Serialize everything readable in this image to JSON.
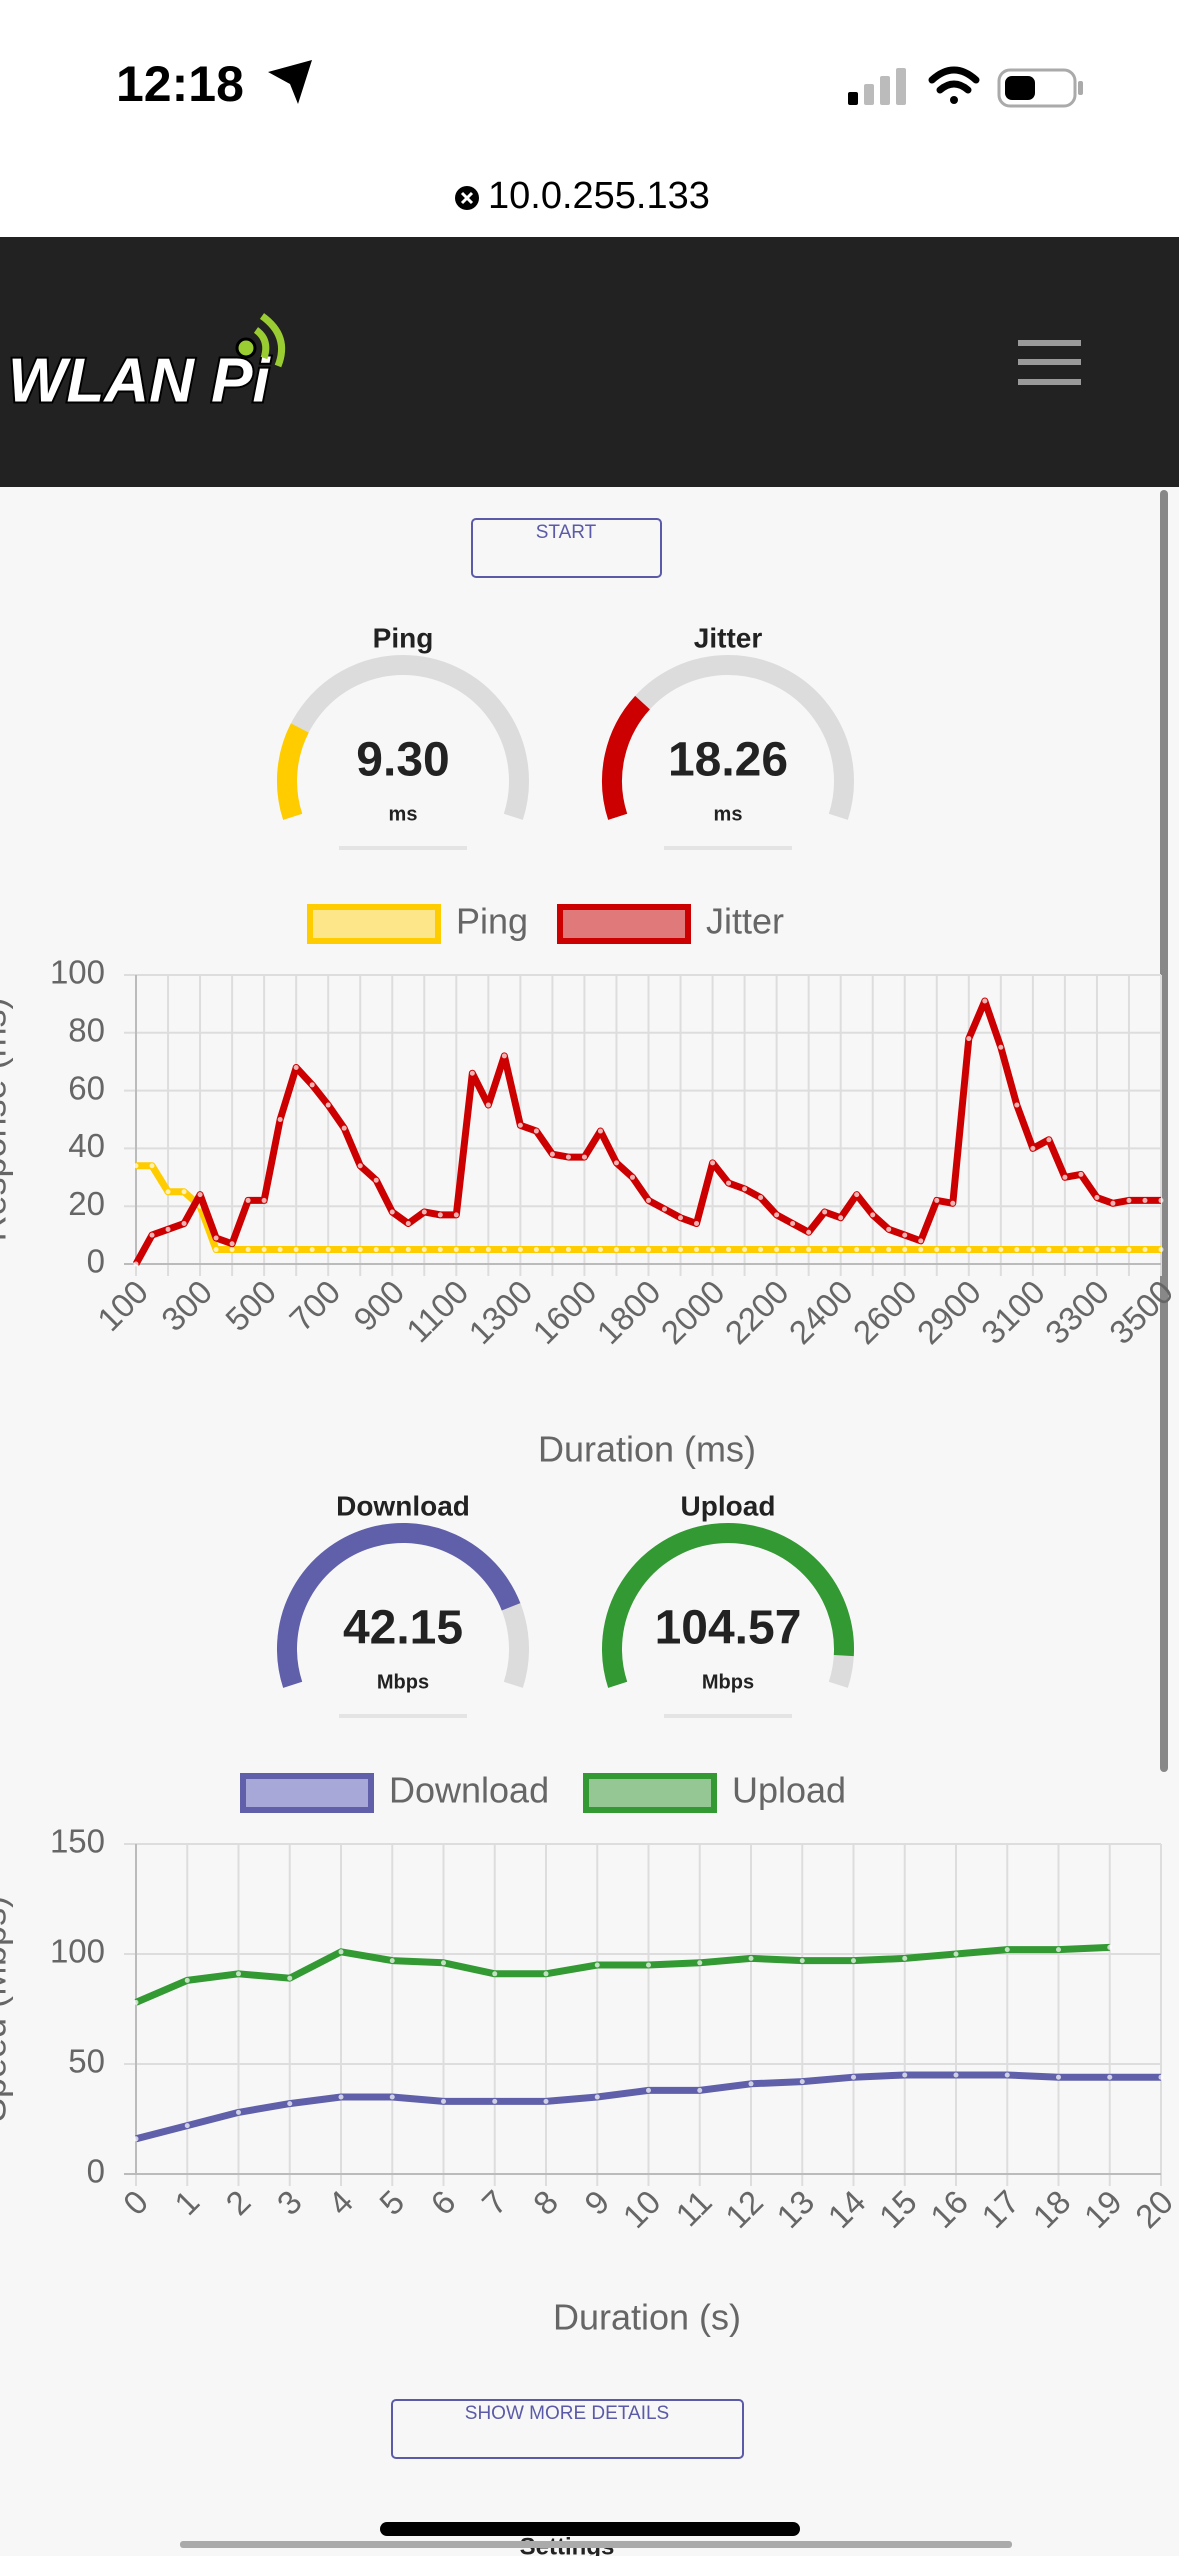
{
  "status": {
    "time": "12:18"
  },
  "url": "10.0.255.133",
  "logo": "WLAN Pi",
  "start_button": "START",
  "gauges": [
    {
      "title": "Ping",
      "value": 9.3,
      "value_label": "9.30",
      "unit": "ms",
      "color": "#ffcc00"
    },
    {
      "title": "Jitter",
      "value": 18.26,
      "value_label": "18.26",
      "unit": "ms",
      "color": "#cc0000"
    },
    {
      "title": "Download",
      "value": 42.15,
      "value_label": "42.15",
      "unit": "Mbps",
      "color": "#6060aa"
    },
    {
      "title": "Upload",
      "value": 104.57,
      "value_label": "104.57",
      "unit": "Mbps",
      "color": "#339933"
    }
  ],
  "chart_data": [
    {
      "type": "line",
      "x_label": "Duration (ms)",
      "y_label": "Response (ms)",
      "categories": [
        100,
        null,
        null,
        null,
        300,
        null,
        null,
        null,
        500,
        null,
        null,
        null,
        700,
        null,
        null,
        null,
        900,
        null,
        null,
        null,
        1100,
        null,
        null,
        null,
        1300,
        null,
        null,
        null,
        1600,
        null,
        null,
        null,
        1800,
        null,
        null,
        null,
        2000,
        null,
        null,
        null,
        2200,
        null,
        null,
        null,
        2400,
        null,
        null,
        null,
        2600,
        null,
        null,
        null,
        2900,
        null,
        null,
        null,
        3100,
        null,
        null,
        null,
        3300,
        null,
        null,
        null,
        3500
      ],
      "series": [
        {
          "name": "Ping",
          "color": "#ffcc00",
          "fill": "#fde58a",
          "values": [
            34,
            34,
            25,
            25,
            20,
            5,
            5,
            5,
            5,
            5,
            5,
            5,
            5,
            5,
            5,
            5,
            5,
            5,
            5,
            5,
            5,
            5,
            5,
            5,
            5,
            5,
            5,
            5,
            5,
            5,
            5,
            5,
            5,
            5,
            5,
            5,
            5,
            5,
            5,
            5,
            5,
            5,
            5,
            5,
            5,
            5,
            5,
            5,
            5,
            5,
            5,
            5,
            5,
            5,
            5,
            5,
            5,
            5,
            5,
            5,
            5,
            5,
            5,
            5,
            5
          ]
        },
        {
          "name": "Jitter",
          "color": "#cc0000",
          "fill": "#e07a7a",
          "values": [
            0,
            10,
            12,
            14,
            24,
            9,
            7,
            22,
            22,
            50,
            68,
            62,
            55,
            47,
            34,
            29,
            18,
            14,
            18,
            17,
            17,
            66,
            55,
            72,
            48,
            46,
            38,
            37,
            37,
            46,
            35,
            30,
            22,
            19,
            16,
            14,
            35,
            28,
            26,
            23,
            17,
            14,
            11,
            18,
            16,
            24,
            17,
            12,
            10,
            8,
            22,
            21,
            78,
            91,
            75,
            55,
            40,
            43,
            30,
            31,
            23,
            21,
            22,
            22,
            22
          ]
        }
      ],
      "ylim": [
        0,
        100
      ],
      "yticks": [
        0,
        20,
        40,
        60,
        80,
        100
      ],
      "grid": true
    },
    {
      "type": "line",
      "x_label": "Duration (s)",
      "y_label": "Speed (Mbps)",
      "categories": [
        0,
        1,
        2,
        3,
        4,
        5,
        6,
        7,
        8,
        9,
        10,
        11,
        12,
        13,
        14,
        15,
        16,
        17,
        18,
        19,
        20
      ],
      "series": [
        {
          "name": "Download",
          "color": "#6060aa",
          "fill": "#a8a8d8",
          "values": [
            16,
            22,
            28,
            32,
            35,
            35,
            33,
            33,
            33,
            35,
            38,
            38,
            41,
            42,
            44,
            45,
            45,
            45,
            44,
            44,
            44
          ]
        },
        {
          "name": "Upload",
          "color": "#339933",
          "fill": "#95c795",
          "values": [
            78,
            88,
            91,
            89,
            101,
            97,
            96,
            91,
            91,
            95,
            95,
            96,
            98,
            97,
            97,
            98,
            100,
            102,
            102,
            103,
            null
          ]
        }
      ],
      "ylim": [
        0,
        150
      ],
      "yticks": [
        0,
        50,
        100,
        150
      ],
      "grid": true
    }
  ],
  "details_button": "SHOW MORE DETAILS",
  "footer": "Settings"
}
